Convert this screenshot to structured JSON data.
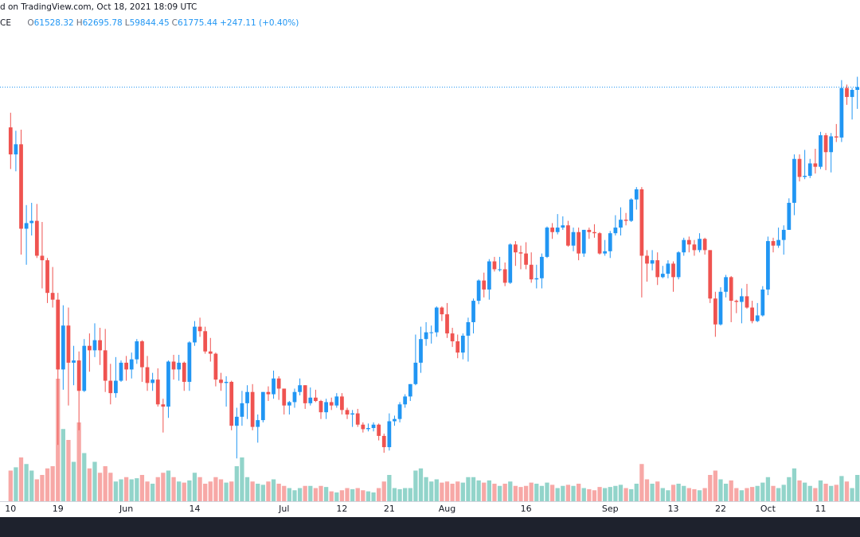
{
  "header": {
    "title": "d on TradingView.com, Oct 18, 2021 18:09 UTC",
    "symbol": "CE",
    "ohlc": [
      {
        "label": "O",
        "value": "61528.32"
      },
      {
        "label": "H",
        "value": "62695.78"
      },
      {
        "label": "L",
        "value": "59844.45"
      },
      {
        "label": "C",
        "value": "61775.44"
      }
    ],
    "change": "+247.11 (+0.40%)"
  },
  "chart_data": {
    "type": "candlestick",
    "categories": [
      "10",
      null,
      null,
      null,
      null,
      null,
      null,
      null,
      null,
      "19",
      null,
      null,
      null,
      null,
      null,
      null,
      null,
      null,
      null,
      null,
      null,
      null,
      "Jun",
      null,
      null,
      null,
      null,
      null,
      null,
      null,
      null,
      null,
      null,
      null,
      null,
      "14",
      null,
      null,
      null,
      null,
      null,
      null,
      null,
      null,
      null,
      null,
      null,
      null,
      null,
      null,
      null,
      null,
      "Jul",
      null,
      null,
      null,
      null,
      null,
      null,
      null,
      null,
      null,
      null,
      "12",
      null,
      null,
      null,
      null,
      null,
      null,
      null,
      null,
      "21",
      null,
      null,
      null,
      null,
      null,
      null,
      null,
      null,
      null,
      null,
      "Aug",
      null,
      null,
      null,
      null,
      null,
      null,
      null,
      null,
      null,
      null,
      null,
      null,
      null,
      null,
      "16",
      null,
      null,
      null,
      null,
      null,
      null,
      null,
      null,
      null,
      null,
      null,
      null,
      null,
      null,
      null,
      "Sep",
      null,
      null,
      null,
      null,
      null,
      null,
      null,
      null,
      null,
      null,
      null,
      "13",
      null,
      null,
      null,
      null,
      null,
      null,
      null,
      null,
      "22",
      null,
      null,
      null,
      null,
      null,
      null,
      null,
      null,
      "Oct",
      null,
      null,
      null,
      null,
      null,
      null,
      null,
      null,
      null,
      "11",
      null,
      null,
      null,
      null,
      null,
      null,
      null
    ],
    "open": [
      58200,
      55800,
      56700,
      49200,
      49700,
      49900,
      46800,
      46400,
      43500,
      42900,
      36700,
      40600,
      37300,
      37500,
      34800,
      38800,
      38400,
      39300,
      38400,
      35700,
      34600,
      35700,
      37300,
      36700,
      37600,
      39200,
      36900,
      35500,
      35800,
      33600,
      33400,
      37400,
      36700,
      37300,
      35600,
      39100,
      40500,
      40100,
      38300,
      38100,
      35800,
      35500,
      35600,
      31700,
      32500,
      33700,
      34700,
      31600,
      32200,
      34700,
      34500,
      35900,
      35000,
      33500,
      33800,
      34700,
      35300,
      33700,
      34200,
      33900,
      32900,
      33800,
      33500,
      34300,
      33100,
      32700,
      32800,
      31800,
      31400,
      31500,
      31800,
      30800,
      29800,
      32100,
      32300,
      33600,
      34300,
      35400,
      37300,
      39400,
      40000,
      40000,
      42200,
      41600,
      39900,
      39200,
      38200,
      39700,
      40900,
      42800,
      44600,
      43800,
      46300,
      45600,
      45600,
      44400,
      47800,
      47100,
      47000,
      46000,
      44700,
      44800,
      46700,
      49300,
      48900,
      49300,
      49500,
      47700,
      48900,
      47000,
      49100,
      48900,
      48800,
      47000,
      47200,
      48800,
      49300,
      50000,
      49900,
      51800,
      52700,
      46800,
      46100,
      46400,
      44900,
      45200,
      46100,
      44900,
      47100,
      48200,
      47800,
      47300,
      48300,
      47300,
      43000,
      40700,
      43600,
      44900,
      42800,
      42700,
      43200,
      42200,
      41000,
      41500,
      43800,
      48100,
      47700,
      48200,
      49100,
      51500,
      55400,
      53800,
      53900,
      55000,
      54700,
      57500,
      56000,
      57400,
      57300,
      61700,
      60900,
      61528.32
    ],
    "high": [
      59500,
      57900,
      58000,
      51300,
      51500,
      51400,
      49800,
      46600,
      45800,
      43500,
      42400,
      42200,
      38800,
      38300,
      39400,
      39900,
      40800,
      40400,
      40300,
      37200,
      37800,
      37500,
      37900,
      38200,
      39400,
      39300,
      37900,
      36400,
      36800,
      34100,
      37500,
      38000,
      38000,
      37400,
      39200,
      41000,
      41300,
      40500,
      39500,
      38200,
      36400,
      36100,
      35700,
      33300,
      34800,
      35300,
      35400,
      32700,
      34700,
      35200,
      36600,
      36100,
      35000,
      33900,
      35000,
      35900,
      35300,
      35100,
      34900,
      34000,
      34100,
      34200,
      34600,
      34600,
      33300,
      33100,
      33200,
      32000,
      31900,
      32000,
      31900,
      31000,
      32800,
      32600,
      33800,
      34500,
      35400,
      39800,
      40500,
      40900,
      40600,
      42300,
      42300,
      42600,
      40400,
      39800,
      39900,
      41300,
      43000,
      44700,
      45300,
      46500,
      46700,
      46700,
      46200,
      47900,
      48100,
      47700,
      48000,
      47100,
      46000,
      47000,
      49400,
      49700,
      50500,
      50300,
      49900,
      49300,
      49300,
      49100,
      49300,
      49600,
      48900,
      48200,
      49000,
      50400,
      51100,
      50600,
      51900,
      52900,
      52900,
      47300,
      47300,
      47100,
      45900,
      46400,
      46300,
      47200,
      48400,
      48500,
      48200,
      48800,
      48400,
      47300,
      43600,
      44000,
      45100,
      45000,
      42900,
      43900,
      44300,
      42800,
      42600,
      44100,
      48500,
      48400,
      49300,
      49500,
      51900,
      55800,
      55800,
      56200,
      55400,
      56300,
      57800,
      57700,
      57700,
      58500,
      62400,
      62000,
      61700,
      62695.78
    ],
    "low": [
      54500,
      54300,
      46900,
      46000,
      48600,
      46600,
      43900,
      42600,
      42200,
      30000,
      34900,
      33500,
      35300,
      31300,
      34700,
      36500,
      37800,
      37100,
      34700,
      33600,
      34200,
      35600,
      35700,
      35900,
      37200,
      35600,
      34800,
      34800,
      33400,
      31100,
      32400,
      35800,
      35700,
      34800,
      34800,
      38800,
      39600,
      38100,
      37400,
      35200,
      34800,
      33400,
      31300,
      28800,
      31700,
      32300,
      31300,
      30200,
      32000,
      33900,
      34100,
      34000,
      32700,
      32700,
      33300,
      34400,
      33200,
      33500,
      33800,
      32300,
      32300,
      33100,
      33300,
      32700,
      32300,
      31600,
      31600,
      31100,
      31200,
      31200,
      30400,
      29300,
      29500,
      31700,
      32000,
      33300,
      33900,
      35300,
      36400,
      38800,
      39000,
      39600,
      41000,
      39500,
      38700,
      37700,
      37600,
      37400,
      39900,
      42500,
      43100,
      42900,
      45400,
      45400,
      44100,
      44300,
      45900,
      45600,
      45600,
      44400,
      43900,
      43900,
      46600,
      48300,
      48700,
      49100,
      47600,
      47200,
      46400,
      46700,
      48300,
      48400,
      46900,
      46800,
      46600,
      48600,
      48600,
      49500,
      49800,
      50900,
      43100,
      44500,
      45500,
      44200,
      44800,
      44800,
      43600,
      44700,
      46800,
      47100,
      46800,
      47100,
      46900,
      42600,
      39600,
      40600,
      43100,
      40900,
      41700,
      40800,
      42100,
      40800,
      40900,
      41400,
      43300,
      47100,
      47500,
      46900,
      49100,
      50400,
      53400,
      53600,
      53700,
      54100,
      54500,
      54400,
      54200,
      56900,
      56900,
      60200,
      58900,
      59844.45
    ],
    "close": [
      55800,
      56700,
      49200,
      49700,
      49900,
      46800,
      46400,
      43500,
      42900,
      36700,
      40600,
      37300,
      37500,
      34800,
      38800,
      38400,
      39300,
      38400,
      35700,
      34600,
      35700,
      37300,
      36700,
      37600,
      39200,
      36900,
      35500,
      35800,
      33600,
      33400,
      37400,
      36700,
      37300,
      35600,
      39100,
      40500,
      40100,
      38300,
      38100,
      35800,
      35500,
      35600,
      31700,
      32500,
      33700,
      34700,
      31600,
      32200,
      34700,
      34500,
      35900,
      35000,
      33500,
      33800,
      34700,
      35300,
      33700,
      34200,
      33900,
      32900,
      33800,
      33500,
      34300,
      33100,
      32700,
      32800,
      31800,
      31400,
      31500,
      31800,
      30800,
      29800,
      32100,
      32300,
      33600,
      34300,
      35400,
      37300,
      39400,
      40000,
      40000,
      42200,
      41600,
      39900,
      39200,
      38200,
      39700,
      40900,
      42800,
      44600,
      43800,
      46300,
      45600,
      45600,
      44400,
      47800,
      47100,
      47000,
      46000,
      44700,
      44800,
      46700,
      49300,
      48900,
      49300,
      49500,
      47700,
      48900,
      47000,
      49100,
      48900,
      48800,
      47000,
      47200,
      48800,
      49300,
      50000,
      49900,
      51800,
      52700,
      46800,
      46100,
      46400,
      44900,
      45200,
      46100,
      44900,
      47100,
      48200,
      47800,
      47300,
      48300,
      47300,
      43000,
      40700,
      43600,
      44900,
      42800,
      42700,
      43200,
      42200,
      41000,
      41500,
      43800,
      48100,
      47700,
      48200,
      49100,
      51500,
      55400,
      53800,
      53900,
      55000,
      54700,
      57500,
      56000,
      57400,
      57300,
      61700,
      60900,
      61528.32,
      61775.44
    ],
    "volume": [
      14000,
      15500,
      20000,
      17000,
      14000,
      10000,
      12000,
      15000,
      16000,
      56000,
      33000,
      28000,
      18000,
      36000,
      22000,
      15000,
      18000,
      13000,
      16000,
      13000,
      9000,
      10000,
      11000,
      10000,
      10500,
      12000,
      9000,
      8000,
      11000,
      13000,
      14000,
      11000,
      9000,
      8500,
      9500,
      13000,
      11000,
      8000,
      9000,
      11000,
      10000,
      8500,
      9000,
      16000,
      20000,
      11000,
      9000,
      8000,
      7500,
      9000,
      10000,
      8000,
      7000,
      6000,
      5000,
      6000,
      7000,
      7000,
      6000,
      7000,
      6500,
      4500,
      4000,
      5000,
      6000,
      5500,
      6000,
      5000,
      4500,
      4000,
      6000,
      9000,
      12000,
      6000,
      5500,
      6000,
      6000,
      14000,
      15000,
      11000,
      9000,
      10000,
      8500,
      9000,
      8000,
      9000,
      8500,
      11000,
      11000,
      9500,
      8500,
      9500,
      8000,
      7000,
      8000,
      9000,
      7000,
      6500,
      7000,
      8500,
      8000,
      7000,
      8500,
      7500,
      6000,
      7000,
      7500,
      7000,
      8000,
      6000,
      5500,
      5000,
      6500,
      6000,
      6500,
      7000,
      7500,
      6000,
      5500,
      8000,
      17000,
      10000,
      8000,
      9000,
      6000,
      5000,
      7500,
      8000,
      7000,
      6000,
      5500,
      5000,
      6000,
      12000,
      14000,
      10000,
      8000,
      9500,
      6000,
      5000,
      6000,
      6500,
      7000,
      8500,
      11000,
      7000,
      6000,
      7500,
      11000,
      15000,
      9500,
      8500,
      7000,
      6000,
      9500,
      8000,
      7000,
      7500,
      11500,
      9000,
      6000,
      12000
    ],
    "up_color": "#2196f3",
    "down_color": "#ef5350",
    "volume_up_color": "#92d4ca",
    "volume_down_color": "#f7a8a6",
    "ylim": [
      25000,
      68100
    ],
    "y2lim": [
      0,
      60000
    ]
  }
}
